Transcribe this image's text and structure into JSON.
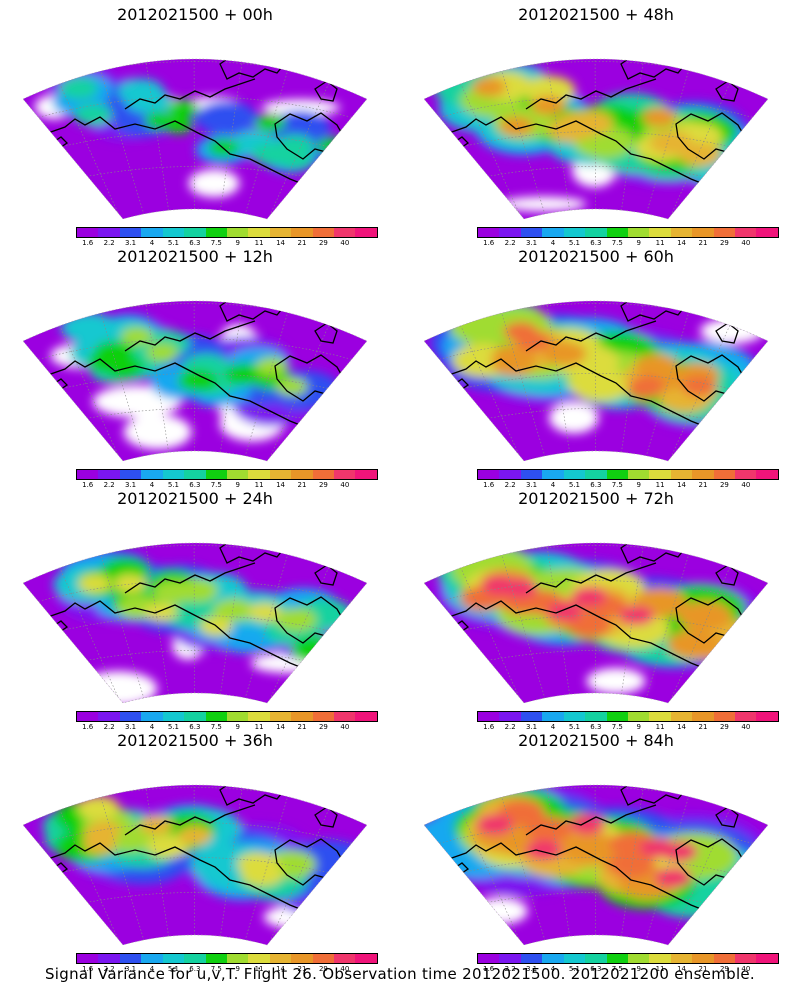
{
  "caption": "Signal Variance for u,v,T. Flight 26. Observation time 2012021500. 2012021200 ensemble.",
  "colorbar": {
    "colors": [
      "#9b00e0",
      "#7b16f0",
      "#2e50f0",
      "#19a8f0",
      "#14c8d0",
      "#14d2a0",
      "#10d010",
      "#a0dc30",
      "#dcdc3c",
      "#e6b432",
      "#e89628",
      "#f06e38",
      "#f0366c",
      "#f0147a"
    ],
    "labels": [
      "1.6",
      "2.2",
      "3.1",
      "4",
      "5.1",
      "6.3",
      "7.5",
      "9",
      "11",
      "14",
      "21",
      "29",
      "40"
    ]
  },
  "panels": [
    {
      "id": "p00",
      "title": "2012021500 + 00h",
      "col": 0,
      "row": 0,
      "intensity": 0
    },
    {
      "id": "p48",
      "title": "2012021500 + 48h",
      "col": 1,
      "row": 0,
      "intensity": 4
    },
    {
      "id": "p12",
      "title": "2012021500 + 12h",
      "col": 0,
      "row": 1,
      "intensity": 1
    },
    {
      "id": "p60",
      "title": "2012021500 + 60h",
      "col": 1,
      "row": 1,
      "intensity": 5
    },
    {
      "id": "p24",
      "title": "2012021500 + 24h",
      "col": 0,
      "row": 2,
      "intensity": 2
    },
    {
      "id": "p72",
      "title": "2012021500 + 72h",
      "col": 1,
      "row": 2,
      "intensity": 6
    },
    {
      "id": "p36",
      "title": "2012021500 + 36h",
      "col": 0,
      "row": 3,
      "intensity": 3
    },
    {
      "id": "p84",
      "title": "2012021500 + 84h",
      "col": 1,
      "row": 3,
      "intensity": 7
    }
  ]
}
